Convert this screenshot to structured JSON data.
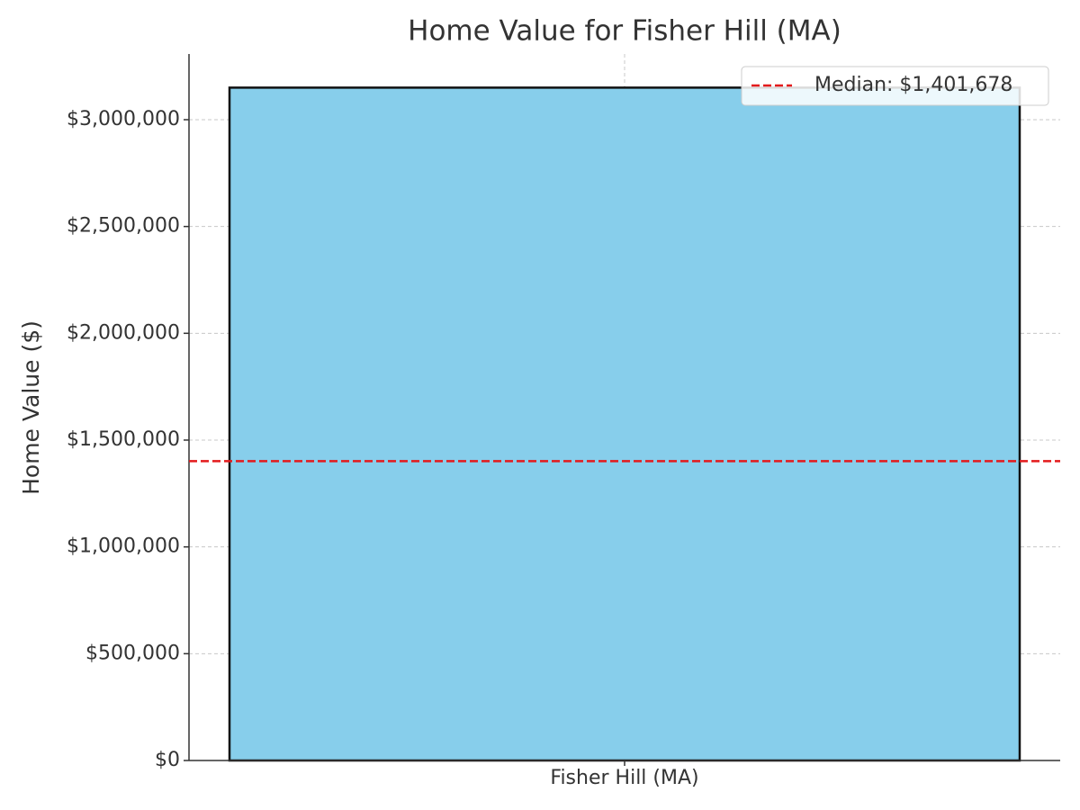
{
  "chart_data": {
    "type": "bar",
    "title": "Home Value for Fisher Hill (MA)",
    "y_label": "Home Value ($)",
    "categories": [
      "Fisher Hill (MA)"
    ],
    "values": [
      3150000
    ],
    "color": "#87ceeb",
    "reference_line": {
      "name": "Median: $1,401,678",
      "value": 1401678,
      "color": "#e31a1c"
    },
    "ylim": [
      0,
      3307500
    ],
    "yticks": [
      {
        "value": 0,
        "label": "$0"
      },
      {
        "value": 500000,
        "label": "$500,000"
      },
      {
        "value": 1000000,
        "label": "$1,000,000"
      },
      {
        "value": 1500000,
        "label": "$1,500,000"
      },
      {
        "value": 2000000,
        "label": "$2,000,000"
      },
      {
        "value": 2500000,
        "label": "$2,500,000"
      },
      {
        "value": 3000000,
        "label": "$3,000,000"
      }
    ],
    "grid": true,
    "legend_position": "upper-right"
  }
}
